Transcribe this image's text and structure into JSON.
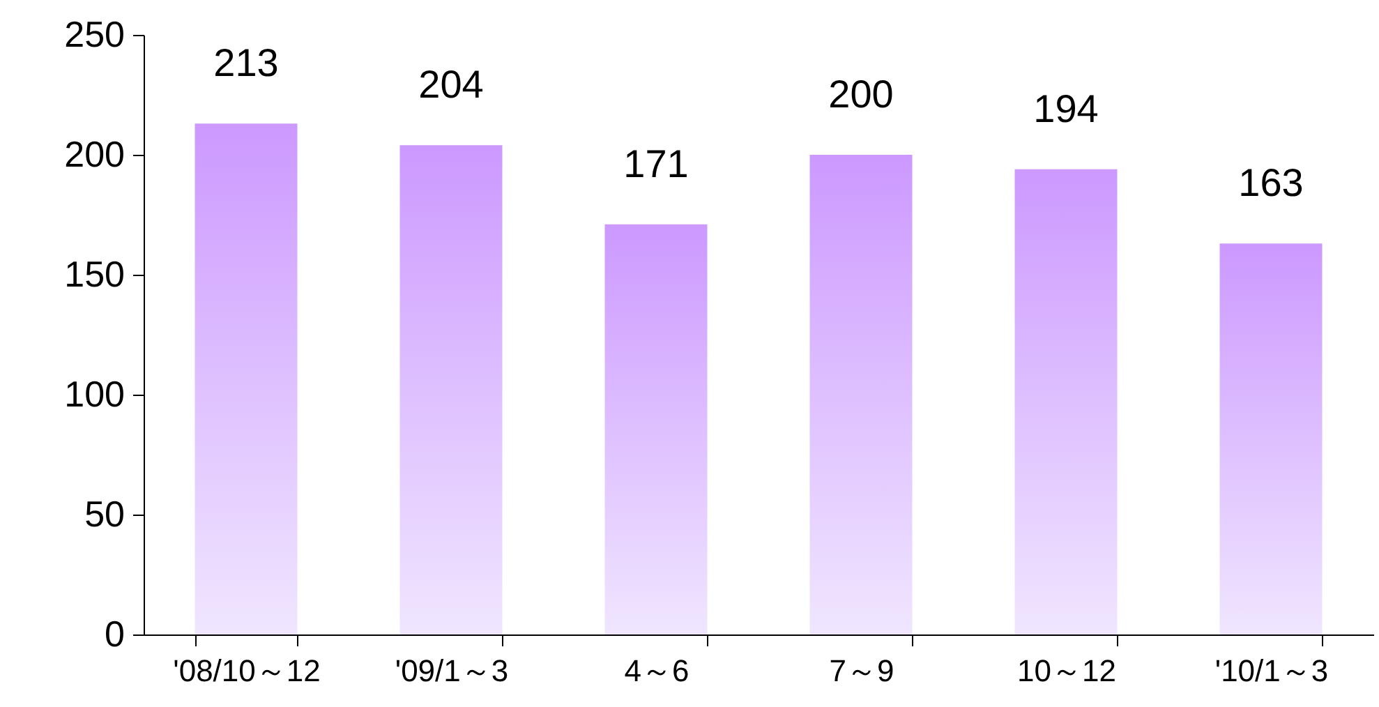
{
  "chart_data": {
    "type": "bar",
    "categories": [
      "'08/10～12",
      "'09/1～3",
      "4～6",
      "7～9",
      "10～12",
      "'10/1～3"
    ],
    "values": [
      213,
      204,
      171,
      200,
      194,
      163
    ],
    "color": "#cc99ff",
    "ylim": [
      0,
      250
    ],
    "yticks": [
      0,
      50,
      100,
      150,
      200,
      250
    ],
    "data_labels": true,
    "grid": false
  }
}
